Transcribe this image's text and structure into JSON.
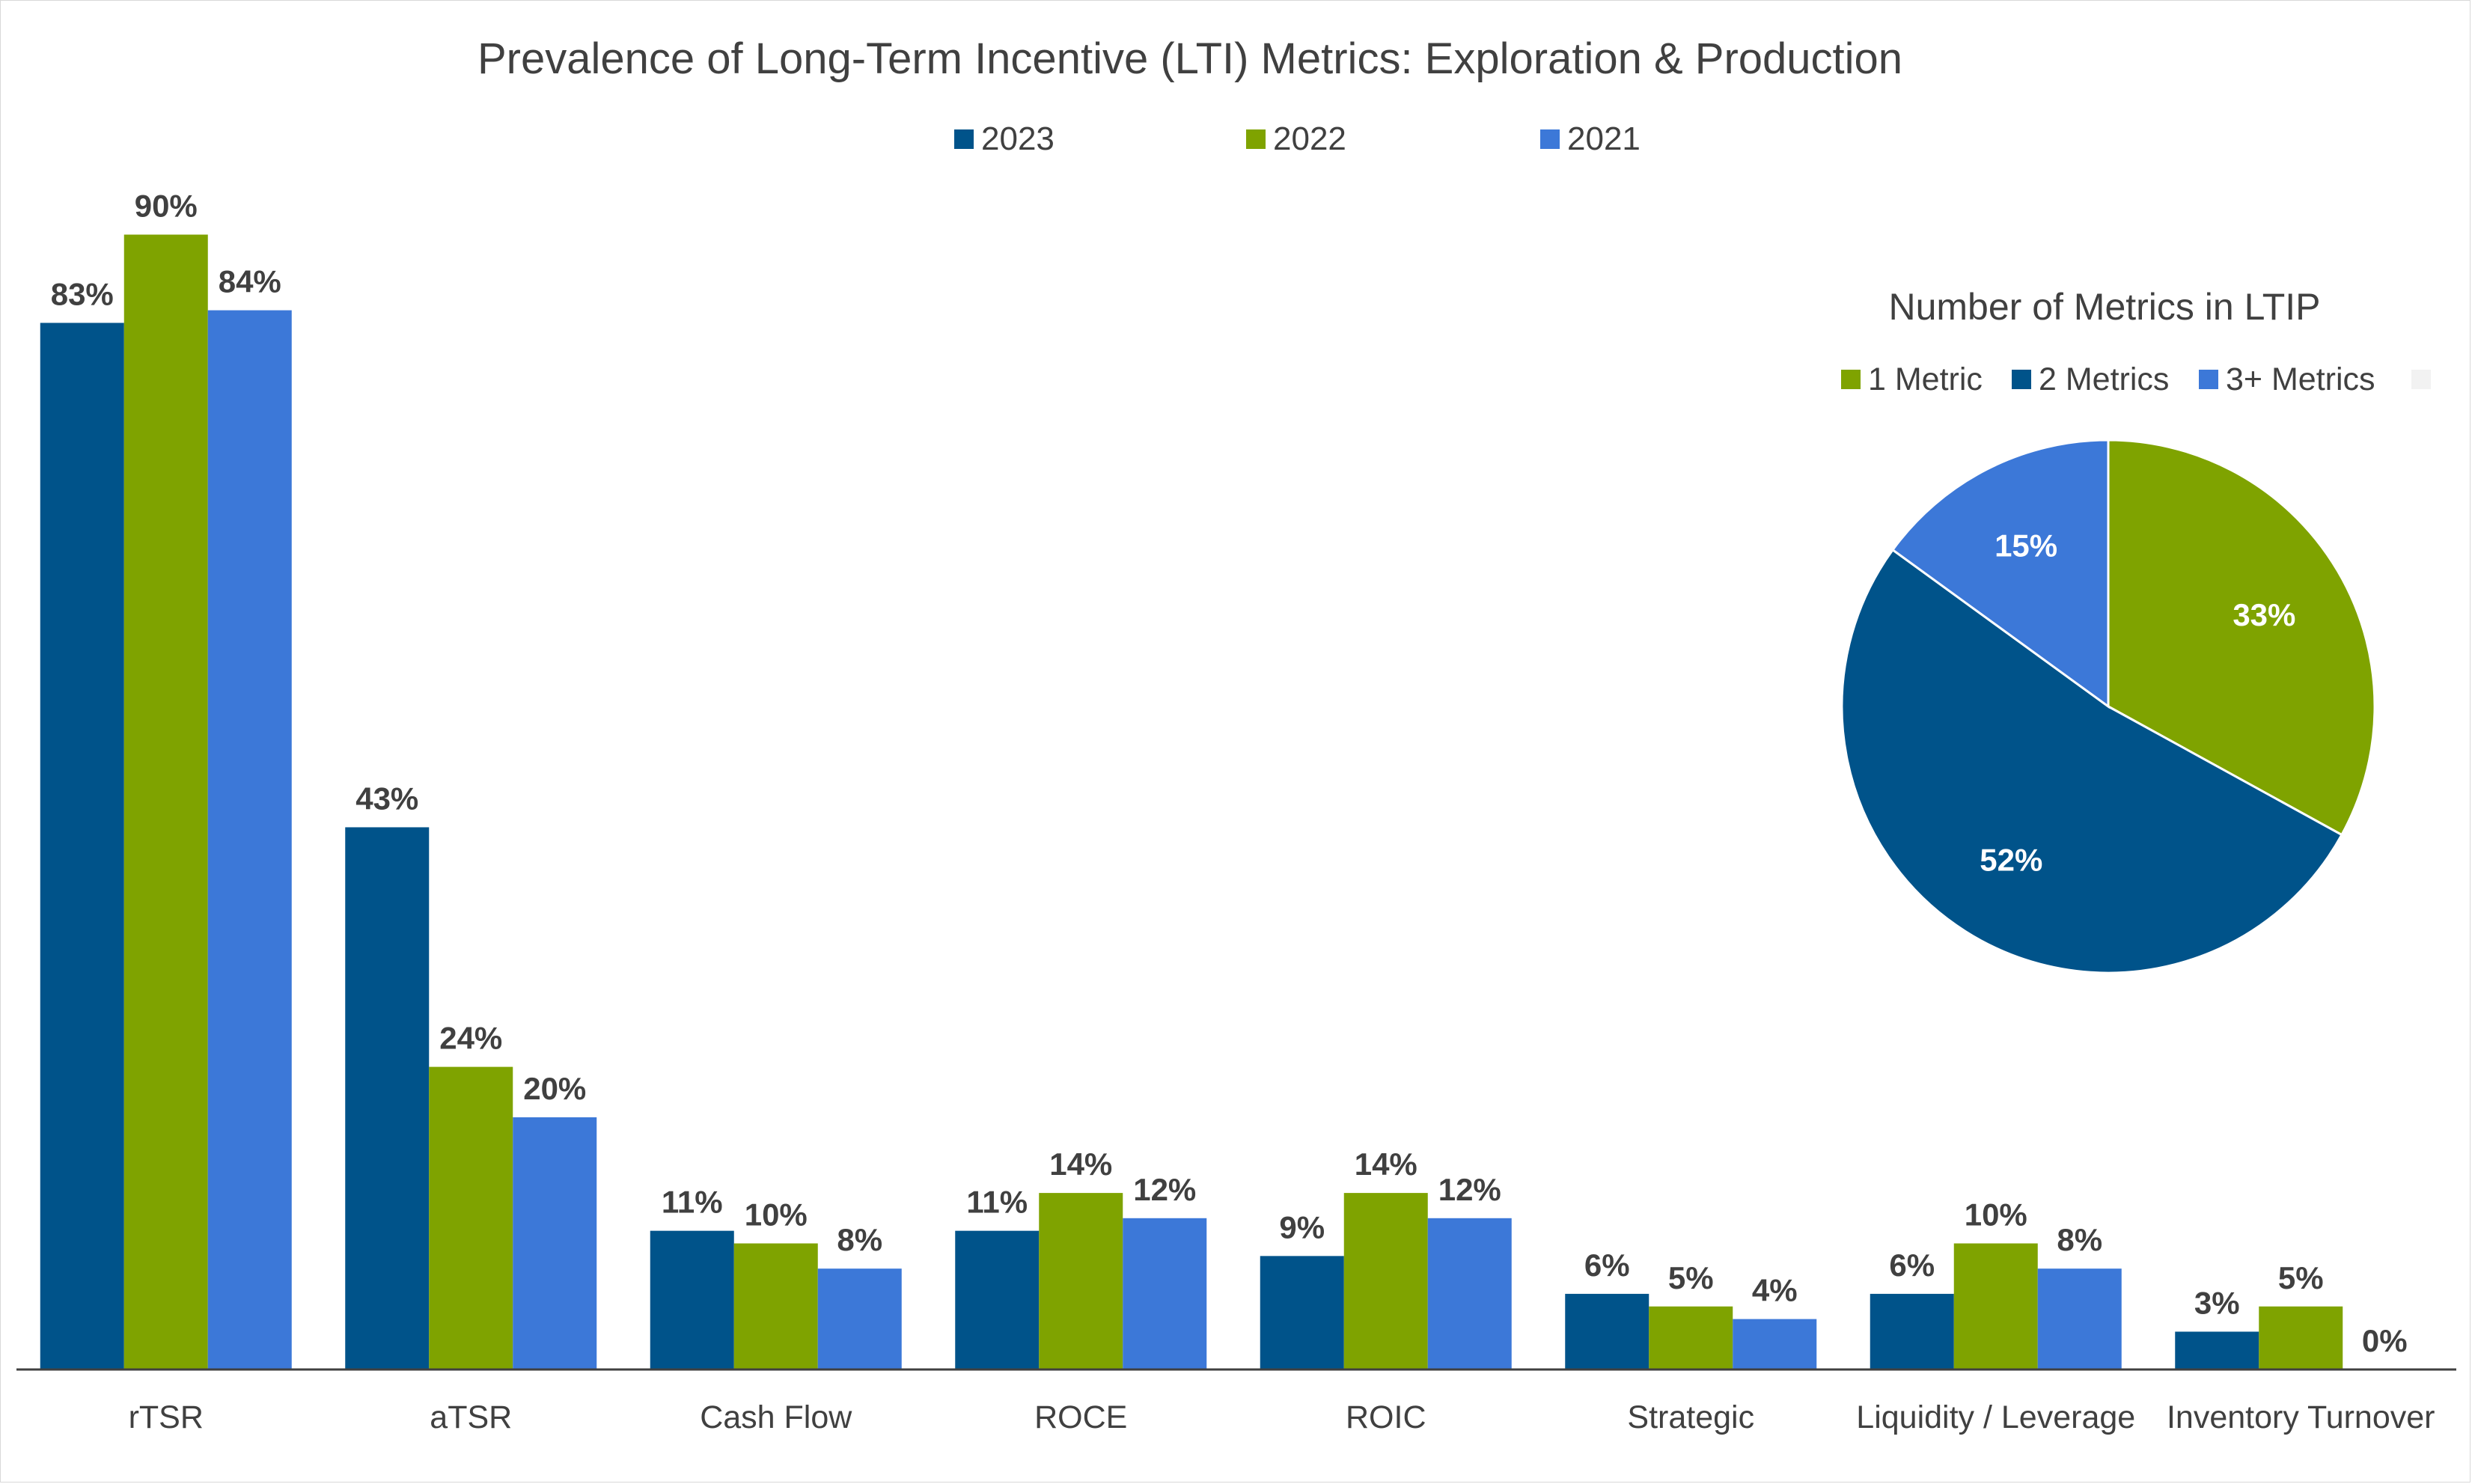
{
  "chart_data": [
    {
      "type": "bar",
      "title": "Prevalence of Long-Term Incentive (LTI) Metrics: Exploration & Production",
      "xlabel": "",
      "ylabel": "",
      "ylim": [
        0,
        100
      ],
      "grid": false,
      "legend_position": "top",
      "categories": [
        "rTSR",
        "aTSR",
        "Cash Flow",
        "ROCE",
        "ROIC",
        "Strategic",
        "Liquidity / Leverage",
        "Inventory Turnover"
      ],
      "series": [
        {
          "name": "2023",
          "color": "#00538a",
          "values": [
            83,
            43,
            11,
            11,
            9,
            6,
            6,
            3
          ],
          "labels": [
            "83%",
            "43%",
            "11%",
            "11%",
            "9%",
            "6%",
            "6%",
            "3%"
          ]
        },
        {
          "name": "2022",
          "color": "#7fa300",
          "values": [
            90,
            24,
            10,
            14,
            14,
            5,
            10,
            5
          ],
          "labels": [
            "90%",
            "24%",
            "10%",
            "14%",
            "14%",
            "5%",
            "10%",
            "5%"
          ]
        },
        {
          "name": "2021",
          "color": "#3c78d8",
          "values": [
            84,
            20,
            8,
            12,
            12,
            4,
            8,
            0
          ],
          "labels": [
            "84%",
            "20%",
            "8%",
            "12%",
            "12%",
            "4%",
            "8%",
            "0%"
          ]
        }
      ]
    },
    {
      "type": "pie",
      "title": "Number of Metrics in LTIP",
      "legend_position": "top",
      "slices": [
        {
          "name": "1 Metric",
          "value": 33,
          "label": "33%",
          "color": "#7fa300"
        },
        {
          "name": "2 Metrics",
          "value": 52,
          "label": "52%",
          "color": "#00538a"
        },
        {
          "name": "3+ Metrics",
          "value": 15,
          "label": "15%",
          "color": "#3c78d8"
        }
      ],
      "extra_legend_swatch_color": "#f2f2f2"
    }
  ]
}
